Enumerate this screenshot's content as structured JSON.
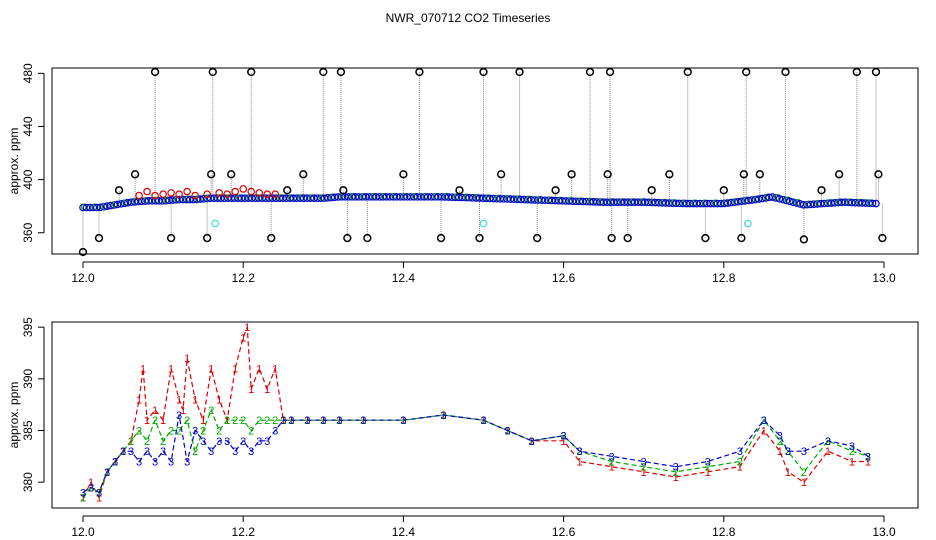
{
  "chart_data": [
    {
      "type": "scatter",
      "title": "NWR_070712  CO2 Timeseries",
      "xlabel": "",
      "ylabel": "approx. ppm",
      "xlim": [
        12.0,
        13.0
      ],
      "ylim": [
        344,
        484
      ],
      "x_ticks": [
        "12.0",
        "12.2",
        "12.4",
        "12.6",
        "12.8",
        "13.0"
      ],
      "x_tick_values": [
        12.0,
        12.2,
        12.4,
        12.6,
        12.8,
        13.0
      ],
      "y_ticks": [
        "360",
        "400",
        "440",
        "480"
      ],
      "y_tick_values": [
        360,
        400,
        440,
        480
      ],
      "grid": false,
      "baseline": {
        "x": [
          12.0,
          12.02,
          12.04,
          12.06,
          12.08,
          12.1,
          12.12,
          12.14,
          12.16,
          12.18,
          12.2,
          12.22,
          12.24,
          12.26,
          12.28,
          12.3,
          12.32,
          12.34,
          12.36,
          12.4,
          12.45,
          12.5,
          12.55,
          12.6,
          12.65,
          12.7,
          12.75,
          12.8,
          12.84,
          12.86,
          12.88,
          12.9,
          12.95,
          12.99
        ],
        "y": [
          379,
          379,
          381,
          383,
          384,
          384,
          385,
          385,
          386,
          386,
          386,
          386,
          386,
          386,
          386,
          386,
          387,
          387,
          387,
          387,
          387,
          386,
          385,
          384,
          383,
          383,
          382,
          382,
          385,
          387,
          384,
          381,
          383,
          382
        ]
      },
      "outliers": {
        "color": "#000000",
        "x": [
          12.0,
          12.02,
          12.045,
          12.065,
          12.09,
          12.11,
          12.155,
          12.16,
          12.162,
          12.185,
          12.21,
          12.235,
          12.255,
          12.275,
          12.3,
          12.322,
          12.325,
          12.33,
          12.355,
          12.4,
          12.42,
          12.447,
          12.47,
          12.495,
          12.5,
          12.522,
          12.545,
          12.567,
          12.59,
          12.61,
          12.633,
          12.655,
          12.658,
          12.66,
          12.68,
          12.71,
          12.732,
          12.755,
          12.777,
          12.8,
          12.822,
          12.825,
          12.828,
          12.845,
          12.877,
          12.9,
          12.922,
          12.944,
          12.966,
          12.99,
          12.993,
          12.998
        ],
        "y": [
          342,
          356,
          392,
          404,
          481,
          356,
          356,
          404,
          481,
          404,
          481,
          356,
          392,
          404,
          481,
          481,
          392,
          356,
          356,
          404,
          481,
          356,
          392,
          356,
          481,
          404,
          481,
          356,
          392,
          404,
          481,
          404,
          481,
          356,
          356,
          392,
          404,
          481,
          356,
          392,
          356,
          404,
          481,
          404,
          481,
          355,
          392,
          404,
          481,
          481,
          404,
          356
        ]
      },
      "cyan_points": {
        "color": "#44dddd",
        "x": [
          12.165,
          12.5,
          12.83
        ],
        "y": [
          367,
          367,
          367
        ]
      },
      "red_points_x": [
        12.07,
        12.08,
        12.09,
        12.1,
        12.11,
        12.12,
        12.13,
        12.14,
        12.155,
        12.17,
        12.18,
        12.19,
        12.2,
        12.21,
        12.22,
        12.23,
        12.24
      ],
      "red_points_y": [
        388,
        391,
        388,
        389,
        390,
        389,
        391,
        388,
        389,
        390,
        389,
        391,
        393,
        391,
        390,
        389,
        389
      ],
      "series_colors": {
        "1": "#dd0000",
        "2": "#00aa00",
        "3": "#0000cc"
      }
    },
    {
      "type": "line",
      "title": "",
      "xlabel": "",
      "ylabel": "approx. ppm",
      "xlim": [
        12.0,
        13.0
      ],
      "ylim": [
        377.5,
        395.5
      ],
      "x_ticks": [
        "12.0",
        "12.2",
        "12.4",
        "12.6",
        "12.8",
        "13.0"
      ],
      "x_tick_values": [
        12.0,
        12.2,
        12.4,
        12.6,
        12.8,
        13.0
      ],
      "y_ticks": [
        "380",
        "385",
        "390",
        "395"
      ],
      "y_tick_values": [
        380,
        385,
        390,
        395
      ],
      "grid": false,
      "marker_style": "digit",
      "series": [
        {
          "marker": "1",
          "color": "#dd0000",
          "x": [
            12.0,
            12.01,
            12.02,
            12.03,
            12.04,
            12.05,
            12.06,
            12.07,
            12.075,
            12.08,
            12.09,
            12.1,
            12.11,
            12.12,
            12.125,
            12.13,
            12.14,
            12.15,
            12.16,
            12.17,
            12.18,
            12.19,
            12.2,
            12.205,
            12.21,
            12.22,
            12.23,
            12.24,
            12.25,
            12.26,
            12.28,
            12.3,
            12.32,
            12.35,
            12.4,
            12.45,
            12.5,
            12.53,
            12.56,
            12.6,
            12.62,
            12.66,
            12.7,
            12.74,
            12.78,
            12.82,
            12.85,
            12.87,
            12.88,
            12.9,
            12.93,
            12.96,
            12.98
          ],
          "y": [
            378.5,
            380,
            378.5,
            381,
            382,
            383,
            384,
            388,
            391,
            386,
            387,
            386,
            391,
            388,
            387,
            392,
            388,
            386,
            391,
            388,
            386,
            391,
            394,
            395,
            389,
            391,
            389,
            391,
            386,
            386,
            386,
            386,
            386,
            386,
            386,
            386.5,
            386,
            385,
            384,
            384,
            382,
            381.5,
            381,
            380.5,
            381,
            381.5,
            385,
            383,
            381,
            380,
            383,
            382,
            382
          ]
        },
        {
          "marker": "2",
          "color": "#00aa00",
          "x": [
            12.0,
            12.01,
            12.02,
            12.03,
            12.04,
            12.05,
            12.06,
            12.07,
            12.08,
            12.09,
            12.1,
            12.11,
            12.12,
            12.13,
            12.14,
            12.15,
            12.16,
            12.17,
            12.18,
            12.19,
            12.2,
            12.21,
            12.22,
            12.23,
            12.24,
            12.25,
            12.26,
            12.28,
            12.3,
            12.32,
            12.35,
            12.4,
            12.45,
            12.5,
            12.53,
            12.56,
            12.6,
            12.62,
            12.66,
            12.7,
            12.74,
            12.78,
            12.82,
            12.85,
            12.87,
            12.88,
            12.9,
            12.93,
            12.96,
            12.98
          ],
          "y": [
            378.5,
            379.5,
            379,
            381,
            382,
            383,
            384,
            385,
            384,
            386,
            384,
            385,
            385,
            386,
            383,
            385,
            387,
            385,
            386,
            386,
            386,
            385,
            386,
            386,
            386,
            386,
            386,
            386,
            386,
            386,
            386,
            386,
            386.5,
            386,
            385,
            384,
            384.5,
            383,
            382,
            381.5,
            381,
            381.5,
            382,
            386,
            384,
            383,
            381,
            384,
            383,
            382.5
          ]
        },
        {
          "marker": "3",
          "color": "#0000cc",
          "x": [
            12.0,
            12.01,
            12.02,
            12.03,
            12.04,
            12.05,
            12.06,
            12.07,
            12.08,
            12.09,
            12.1,
            12.11,
            12.12,
            12.13,
            12.14,
            12.15,
            12.16,
            12.17,
            12.18,
            12.19,
            12.2,
            12.21,
            12.22,
            12.23,
            12.24,
            12.25,
            12.26,
            12.28,
            12.3,
            12.32,
            12.35,
            12.4,
            12.45,
            12.5,
            12.53,
            12.56,
            12.6,
            12.62,
            12.66,
            12.7,
            12.74,
            12.78,
            12.82,
            12.85,
            12.87,
            12.88,
            12.9,
            12.93,
            12.96,
            12.98
          ],
          "y": [
            379,
            379.5,
            379,
            381,
            382,
            383,
            383,
            382,
            383,
            382,
            383,
            382,
            386.5,
            382,
            385,
            384,
            383,
            384,
            384,
            383,
            384,
            383,
            384,
            384,
            385,
            386,
            386,
            386,
            386,
            386,
            386,
            386,
            386.5,
            386,
            385,
            384,
            384.5,
            383,
            382.5,
            382,
            381.5,
            382,
            383,
            386,
            384.5,
            383,
            383,
            384,
            383.5,
            382.5
          ]
        }
      ]
    }
  ]
}
